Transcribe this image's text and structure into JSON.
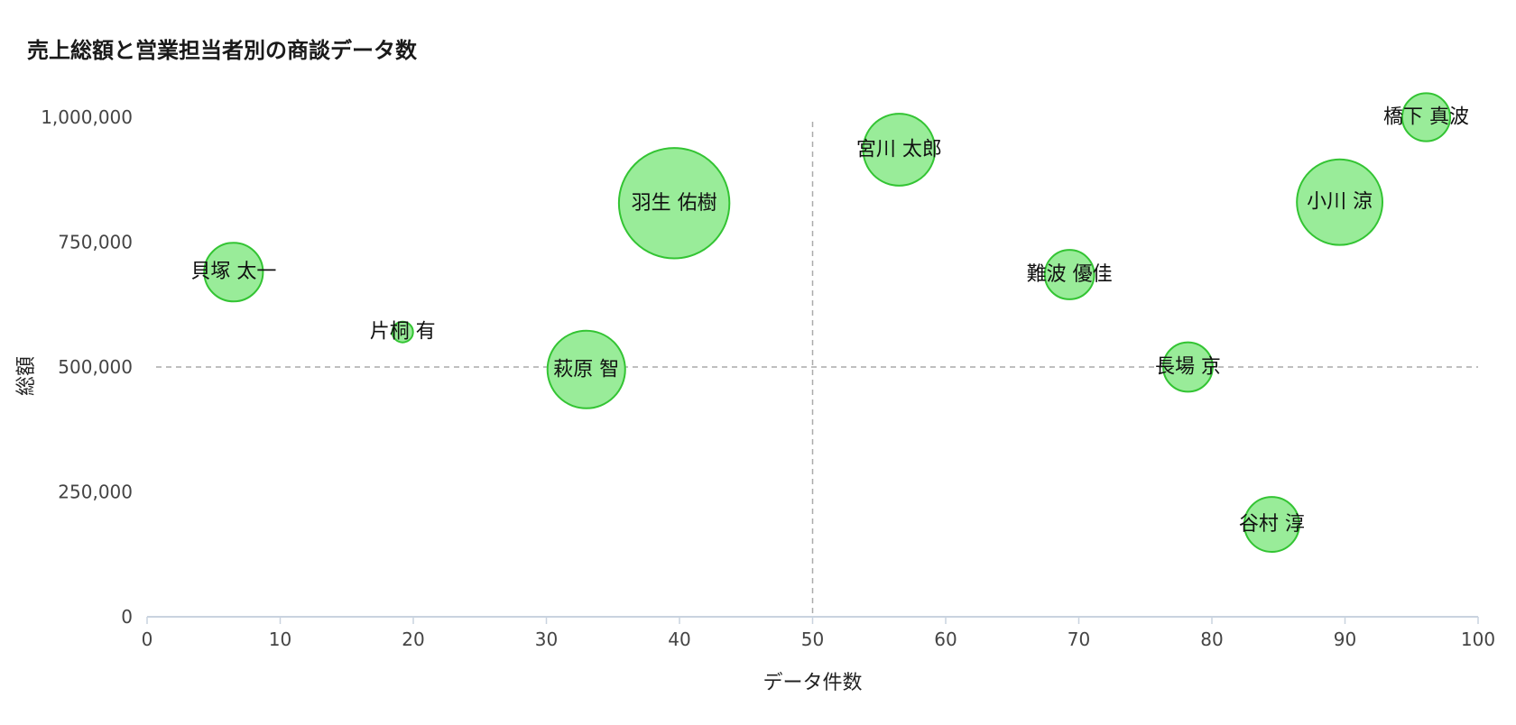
{
  "chart_data": {
    "type": "scatter",
    "title": "売上総額と営業担当者別の商談データ数",
    "xlabel": "データ件数",
    "ylabel": "総額",
    "xlim": [
      0,
      100
    ],
    "ylim": [
      0,
      1000000
    ],
    "x_ticks": [
      "0",
      "10",
      "20",
      "30",
      "40",
      "50",
      "60",
      "70",
      "80",
      "90",
      "100"
    ],
    "x_tick_values": [
      0,
      10,
      20,
      30,
      40,
      50,
      60,
      70,
      80,
      90,
      100
    ],
    "y_ticks": [
      "0",
      "250,000",
      "500,000",
      "750,000",
      "1,000,000"
    ],
    "y_tick_values": [
      0,
      250000,
      500000,
      750000,
      1000000
    ],
    "reference_lines": {
      "x": 50,
      "y": 500000
    },
    "colors": {
      "bubble_fill": "#99ec99",
      "bubble_stroke": "#33c433"
    },
    "points": [
      {
        "label": "貝塚 太一",
        "x": 6.5,
        "y": 690000,
        "size": 2.4
      },
      {
        "label": "片桐 有",
        "x": 19.2,
        "y": 570000,
        "size": 0.3
      },
      {
        "label": "萩原 智",
        "x": 33,
        "y": 495000,
        "size": 4.2
      },
      {
        "label": "羽生 佑樹",
        "x": 39.6,
        "y": 828000,
        "size": 8.5
      },
      {
        "label": "宮川 太郎",
        "x": 56.5,
        "y": 935000,
        "size": 3.6
      },
      {
        "label": "難波 優佳",
        "x": 69.3,
        "y": 685000,
        "size": 1.7
      },
      {
        "label": "長場 京",
        "x": 78.2,
        "y": 500000,
        "size": 1.7
      },
      {
        "label": "谷村 淳",
        "x": 84.5,
        "y": 185000,
        "size": 2.1
      },
      {
        "label": "小川 涼",
        "x": 89.6,
        "y": 830000,
        "size": 5.1
      },
      {
        "label": "橋下 真波",
        "x": 96.1,
        "y": 1000000,
        "size": 1.6
      }
    ]
  }
}
